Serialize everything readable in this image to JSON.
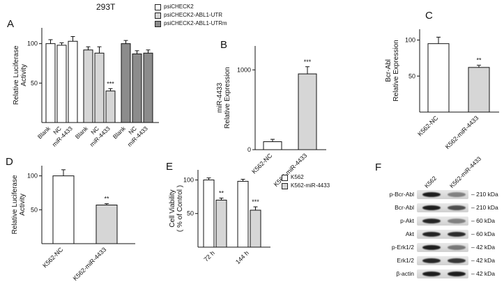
{
  "panels": {
    "a": "A",
    "b": "B",
    "c": "C",
    "d": "D",
    "e": "E",
    "f": "F"
  },
  "legends": {
    "constructs": {
      "items": [
        {
          "label": "psiCHECK2",
          "color": "#ffffff"
        },
        {
          "label": "psiCHECK2-ABL1-UTR",
          "color": "#d6d6d6"
        },
        {
          "label": "psiCHECK2-ABL1-UTRm",
          "color": "#8c8c8c"
        }
      ]
    },
    "viability": {
      "items": [
        {
          "label": "K562",
          "color": "#ffffff"
        },
        {
          "label": "K562-miR-4433",
          "color": "#d6d6d6"
        }
      ]
    }
  },
  "chart_data": [
    {
      "id": "A",
      "type": "bar",
      "title": "293T",
      "ylabel_lines": [
        "Relative Luciferase",
        "Activity"
      ],
      "ylim": [
        0,
        120
      ],
      "yticks": [
        50,
        100
      ],
      "groups": [
        {
          "series": "psiCHECK2",
          "color": "#ffffff",
          "bars": [
            {
              "category": "Blank",
              "value": 100,
              "err": 5
            },
            {
              "category": "NC",
              "value": 98,
              "err": 3
            },
            {
              "category": "miR-4433",
              "value": 103,
              "err": 6
            }
          ]
        },
        {
          "series": "psiCHECK2-ABL1-UTR",
          "color": "#d6d6d6",
          "bars": [
            {
              "category": "Blank",
              "value": 92,
              "err": 4
            },
            {
              "category": "NC",
              "value": 88,
              "err": 8
            },
            {
              "category": "miR-4433",
              "value": 40,
              "err": 3,
              "sig": "***"
            }
          ]
        },
        {
          "series": "psiCHECK2-ABL1-UTRm",
          "color": "#8c8c8c",
          "bars": [
            {
              "category": "Blank",
              "value": 100,
              "err": 4
            },
            {
              "category": "NC",
              "value": 87,
              "err": 4
            },
            {
              "category": "miR-4433",
              "value": 88,
              "err": 4
            }
          ]
        }
      ]
    },
    {
      "id": "B",
      "type": "bar",
      "ylabel_lines": [
        "miR-4433",
        "Relative Expression"
      ],
      "ylim": [
        0,
        1300
      ],
      "yticks": [
        0,
        1000
      ],
      "groups": [
        {
          "bars": [
            {
              "category": "K562-NC",
              "value": 100,
              "err": 30,
              "color": "#ffffff"
            },
            {
              "category": "K562-miR-4433",
              "value": 950,
              "err": 90,
              "sig": "***",
              "color": "#d6d6d6"
            }
          ]
        }
      ]
    },
    {
      "id": "C",
      "type": "bar",
      "ylabel_lines": [
        "Bcr-Abl",
        "Relative Expression"
      ],
      "ylim": [
        0,
        115
      ],
      "yticks": [
        50,
        100
      ],
      "groups": [
        {
          "bars": [
            {
              "category": "K562-NC",
              "value": 95,
              "err": 9,
              "color": "#ffffff"
            },
            {
              "category": "K562-miR-4433",
              "value": 62,
              "err": 3,
              "sig": "**",
              "color": "#d6d6d6"
            }
          ]
        }
      ]
    },
    {
      "id": "D",
      "type": "bar",
      "ylabel_lines": [
        "Relative Luciferase",
        "Activity"
      ],
      "ylim": [
        0,
        115
      ],
      "yticks": [
        50,
        100
      ],
      "groups": [
        {
          "bars": [
            {
              "category": "K562-NC",
              "value": 100,
              "err": 9,
              "color": "#ffffff"
            },
            {
              "category": "K562-miR-4433",
              "value": 57,
              "err": 2,
              "sig": "**",
              "color": "#d6d6d6"
            }
          ]
        }
      ]
    },
    {
      "id": "E",
      "type": "bar",
      "ylabel_lines": [
        "Cell Viability",
        "( % of Control )"
      ],
      "ylim": [
        0,
        115
      ],
      "yticks": [
        50,
        100
      ],
      "groups": [
        {
          "category": "72 h",
          "bars": [
            {
              "series": "K562",
              "value": 100,
              "err": 3,
              "color": "#ffffff"
            },
            {
              "series": "K562-miR-4433",
              "value": 70,
              "err": 3,
              "sig": "**",
              "color": "#d6d6d6"
            }
          ]
        },
        {
          "category": "144 h",
          "bars": [
            {
              "series": "K562",
              "value": 98,
              "err": 3,
              "color": "#ffffff"
            },
            {
              "series": "K562-miR-4433",
              "value": 55,
              "err": 5,
              "sig": "***",
              "color": "#d6d6d6"
            }
          ]
        }
      ]
    }
  ],
  "western_blot": {
    "lane_labels": [
      "K562",
      "K562-miR-4433"
    ],
    "rows": [
      {
        "label": "p-Bcr-Abl",
        "kda": "– 210 kDa",
        "lane_intensity": [
          0.95,
          0.45
        ]
      },
      {
        "label": "Bcr-Abl",
        "kda": "– 210 kDa",
        "lane_intensity": [
          0.95,
          0.7
        ]
      },
      {
        "label": "p-Akt",
        "kda": "– 60 kDa",
        "lane_intensity": [
          0.9,
          0.45
        ]
      },
      {
        "label": "Akt",
        "kda": "– 60 kDa",
        "lane_intensity": [
          0.92,
          0.88
        ]
      },
      {
        "label": "p-Erk1/2",
        "kda": "– 42 kDa",
        "lane_intensity": [
          0.95,
          0.5
        ]
      },
      {
        "label": "Erk1/2",
        "kda": "– 42 kDa",
        "lane_intensity": [
          0.9,
          0.82
        ]
      },
      {
        "label": "β-actin",
        "kda": "– 42 kDa",
        "lane_intensity": [
          0.95,
          0.95
        ]
      }
    ]
  }
}
